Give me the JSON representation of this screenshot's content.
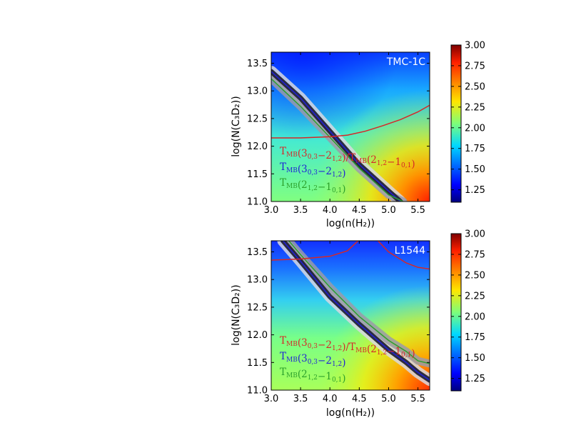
{
  "chart_data": [
    {
      "type": "heatmap",
      "panel_label": "TMC-1C",
      "xlabel": "log(n(H₂))",
      "ylabel": "log(N(C₃D₂))",
      "xlim": [
        3.0,
        5.7
      ],
      "ylim": [
        11.0,
        13.7
      ],
      "xticks": [
        "3.0",
        "3.5",
        "4.0",
        "4.5",
        "5.0",
        "5.5"
      ],
      "yticks": [
        "11.0",
        "11.5",
        "12.0",
        "12.5",
        "13.0",
        "13.5"
      ],
      "colorbar": {
        "range": [
          1.1,
          3.0
        ],
        "ticks": [
          "1.25",
          "1.50",
          "1.75",
          "2.00",
          "2.25",
          "2.50",
          "2.75",
          "3.00"
        ]
      },
      "series": [
        {
          "name": "T_MB(3_{0,3}−2_{1,2})/T_MB(2_{1,2}−1_{0,1})",
          "color": "#d62728",
          "x": [
            3.0,
            3.5,
            4.0,
            4.3,
            4.6,
            4.9,
            5.2,
            5.5,
            5.7
          ],
          "y": [
            12.15,
            12.15,
            12.17,
            12.2,
            12.27,
            12.37,
            12.48,
            12.62,
            12.74
          ]
        },
        {
          "name": "T_MB(3_{0,3}−2_{1,2})",
          "color": "#1f1fd6",
          "x": [
            3.0,
            3.5,
            4.0,
            4.5,
            5.0,
            5.2
          ],
          "y": [
            13.35,
            12.87,
            12.27,
            11.67,
            11.19,
            11.0
          ]
        },
        {
          "name": "T_MB(2_{1,2}−1_{0,1})",
          "color": "#2ca02c",
          "x": [
            3.0,
            3.5,
            4.0,
            4.5,
            5.0,
            5.25
          ],
          "y": [
            13.22,
            12.72,
            12.16,
            11.6,
            11.12,
            11.0
          ]
        }
      ],
      "legend": [
        {
          "text": "T_MB(3_{0,3}−2_{1,2})/T_MB(2_{1,2}−1_{0,1})",
          "color": "#d62728"
        },
        {
          "text": "T_MB(3_{0,3}−2_{1,2})",
          "color": "#1f1fd6"
        },
        {
          "text": "T_MB(2_{1,2}−1_{0,1})",
          "color": "#2ca02c"
        }
      ]
    },
    {
      "type": "heatmap",
      "panel_label": "L1544",
      "xlabel": "log(n(H₂))",
      "ylabel": "log(N(C₃D₂))",
      "xlim": [
        3.0,
        5.7
      ],
      "ylim": [
        11.0,
        13.7
      ],
      "xticks": [
        "3.0",
        "3.5",
        "4.0",
        "4.5",
        "5.0",
        "5.5"
      ],
      "yticks": [
        "11.0",
        "11.5",
        "12.0",
        "12.5",
        "13.0",
        "13.5"
      ],
      "colorbar": {
        "range": [
          1.1,
          3.0
        ],
        "ticks": [
          "1.25",
          "1.50",
          "1.75",
          "2.00",
          "2.25",
          "2.50",
          "2.75",
          "3.00"
        ]
      },
      "series": [
        {
          "name": "T_MB(3_{0,3}−2_{1,2})/T_MB(2_{1,2}−1_{0,1})",
          "color": "#d62728",
          "x": [
            3.0,
            3.5,
            4.0,
            4.3,
            4.5,
            4.8,
            5.0,
            5.3,
            5.5,
            5.7
          ],
          "y": [
            13.35,
            13.37,
            13.42,
            13.52,
            13.72,
            13.72,
            13.5,
            13.3,
            13.22,
            13.19
          ]
        },
        {
          "name": "T_MB(3_{0,3}−2_{1,2})",
          "color": "#1f1fd6",
          "x": [
            3.2,
            3.5,
            4.0,
            4.5,
            5.0,
            5.3,
            5.5,
            5.7
          ],
          "y": [
            13.7,
            13.33,
            12.69,
            12.19,
            11.73,
            11.5,
            11.32,
            11.18
          ]
        },
        {
          "name": "T_MB(2_{1,2}−1_{0,1})",
          "color": "#2ca02c",
          "x": [
            3.3,
            3.5,
            4.0,
            4.5,
            5.0,
            5.3,
            5.5,
            5.7
          ],
          "y": [
            13.7,
            13.45,
            12.86,
            12.33,
            11.9,
            11.7,
            11.53,
            11.48
          ]
        }
      ],
      "legend": [
        {
          "text": "T_MB(3_{0,3}−2_{1,2})/T_MB(2_{1,2}−1_{0,1})",
          "color": "#d62728"
        },
        {
          "text": "T_MB(3_{0,3}−2_{1,2})",
          "color": "#1f1fd6"
        },
        {
          "text": "T_MB(2_{1,2}−1_{0,1})",
          "color": "#2ca02c"
        }
      ]
    }
  ]
}
